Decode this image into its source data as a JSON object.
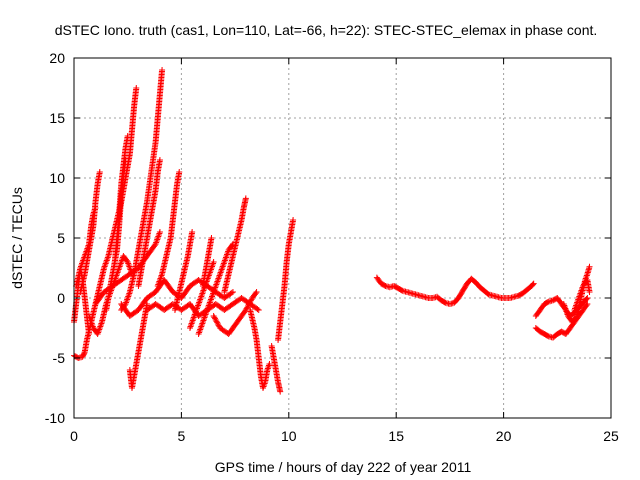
{
  "chart_data": {
    "type": "scatter",
    "title": "dSTEC Iono. truth (cas1, Lon=110, Lat=-66, h=22): STEC-STEC_elemax in phase cont.",
    "xlabel": "GPS time / hours of day 222 of year 2011",
    "ylabel": "dSTEC  / TECUs",
    "xlim": [
      0,
      25
    ],
    "ylim": [
      -10,
      20
    ],
    "xticks": [
      0,
      5,
      10,
      15,
      20,
      25
    ],
    "yticks": [
      -10,
      -5,
      0,
      5,
      10,
      15,
      20
    ],
    "grid": true,
    "marker": "plus",
    "marker_color": "#ff0000",
    "arcs": [
      [
        [
          0.0,
          -2.0
        ],
        [
          0.1,
          -0.5
        ],
        [
          0.2,
          1.0
        ],
        [
          0.3,
          2.5
        ],
        [
          0.4,
          1.5
        ],
        [
          0.5,
          0.0
        ],
        [
          0.6,
          -1.5
        ],
        [
          0.7,
          -3.0
        ]
      ],
      [
        [
          0.0,
          -4.8
        ],
        [
          0.2,
          -5.0
        ],
        [
          0.4,
          -4.9
        ],
        [
          0.5,
          -4.5
        ],
        [
          0.6,
          -3.5
        ],
        [
          0.8,
          -2.0
        ],
        [
          1.0,
          -0.5
        ],
        [
          1.2,
          1.0
        ],
        [
          1.4,
          2.5
        ],
        [
          1.6,
          3.5
        ],
        [
          1.8,
          5.0
        ],
        [
          2.0,
          6.5
        ],
        [
          2.2,
          8.0
        ],
        [
          2.4,
          10.0
        ],
        [
          2.6,
          12.0
        ],
        [
          2.7,
          14.0
        ],
        [
          2.8,
          16.0
        ],
        [
          2.9,
          17.5
        ]
      ],
      [
        [
          0.3,
          0.5
        ],
        [
          0.5,
          2.0
        ],
        [
          0.7,
          4.0
        ],
        [
          0.9,
          6.0
        ],
        [
          1.0,
          8.0
        ],
        [
          1.1,
          9.5
        ],
        [
          1.2,
          10.5
        ]
      ],
      [
        [
          0.1,
          1.0
        ],
        [
          0.3,
          2.5
        ],
        [
          0.5,
          3.5
        ],
        [
          0.7,
          4.5
        ],
        [
          0.8,
          6.0
        ],
        [
          0.9,
          7.0
        ],
        [
          1.0,
          7.5
        ]
      ],
      [
        [
          0.7,
          -1.5
        ],
        [
          0.9,
          -2.5
        ],
        [
          1.1,
          -3.0
        ],
        [
          1.3,
          -2.0
        ],
        [
          1.5,
          -0.5
        ],
        [
          1.7,
          0.5
        ],
        [
          1.9,
          1.5
        ],
        [
          2.1,
          2.5
        ],
        [
          2.3,
          3.5
        ],
        [
          2.5,
          3.0
        ],
        [
          2.7,
          2.0
        ]
      ],
      [
        [
          1.5,
          -1.0
        ],
        [
          1.7,
          1.0
        ],
        [
          1.9,
          3.0
        ],
        [
          2.0,
          5.0
        ],
        [
          2.1,
          7.0
        ],
        [
          2.2,
          9.5
        ],
        [
          2.3,
          11.0
        ],
        [
          2.4,
          12.5
        ],
        [
          2.5,
          13.5
        ]
      ],
      [
        [
          1.6,
          0.0
        ],
        [
          1.8,
          2.0
        ],
        [
          2.0,
          4.0
        ],
        [
          2.1,
          6.0
        ],
        [
          2.2,
          8.5
        ],
        [
          2.3,
          10.0
        ],
        [
          2.4,
          11.5
        ]
      ],
      [
        [
          1.0,
          -0.5
        ],
        [
          1.4,
          0.5
        ],
        [
          1.8,
          1.0
        ],
        [
          2.2,
          1.5
        ],
        [
          2.6,
          2.0
        ],
        [
          3.0,
          2.5
        ],
        [
          3.4,
          3.5
        ],
        [
          3.8,
          4.5
        ],
        [
          4.0,
          5.5
        ]
      ],
      [
        [
          2.2,
          -1.0
        ],
        [
          2.4,
          -0.5
        ],
        [
          2.6,
          0.5
        ],
        [
          2.8,
          2.0
        ],
        [
          3.0,
          4.0
        ],
        [
          3.2,
          6.0
        ],
        [
          3.4,
          8.0
        ],
        [
          3.6,
          10.5
        ],
        [
          3.8,
          13.0
        ],
        [
          3.9,
          15.0
        ],
        [
          4.0,
          17.0
        ],
        [
          4.1,
          19.0
        ]
      ],
      [
        [
          2.6,
          -6.0
        ],
        [
          2.7,
          -7.5
        ],
        [
          2.8,
          -6.5
        ],
        [
          2.9,
          -5.5
        ],
        [
          3.0,
          -4.5
        ],
        [
          3.1,
          -3.5
        ],
        [
          3.2,
          -2.5
        ],
        [
          3.3,
          -1.5
        ],
        [
          3.4,
          -0.5
        ]
      ],
      [
        [
          3.0,
          1.0
        ],
        [
          3.2,
          3.0
        ],
        [
          3.4,
          5.0
        ],
        [
          3.6,
          7.0
        ],
        [
          3.8,
          9.0
        ],
        [
          3.9,
          10.5
        ],
        [
          4.0,
          11.5
        ]
      ],
      [
        [
          2.2,
          -0.5
        ],
        [
          2.6,
          -1.5
        ],
        [
          3.0,
          -1.0
        ],
        [
          3.4,
          0.0
        ],
        [
          3.8,
          0.5
        ],
        [
          4.2,
          1.5
        ],
        [
          4.6,
          0.5
        ],
        [
          5.0,
          0.0
        ],
        [
          5.4,
          1.0
        ],
        [
          5.8,
          1.5
        ],
        [
          6.2,
          1.0
        ],
        [
          6.6,
          0.5
        ],
        [
          7.0,
          0.0
        ],
        [
          7.4,
          0.5
        ]
      ],
      [
        [
          3.4,
          -1.0
        ],
        [
          3.8,
          -0.5
        ],
        [
          4.2,
          -1.0
        ],
        [
          4.6,
          -0.5
        ],
        [
          5.0,
          -1.0
        ],
        [
          5.4,
          -0.5
        ],
        [
          5.8,
          -1.5
        ],
        [
          6.2,
          -1.0
        ],
        [
          6.6,
          -0.5
        ],
        [
          7.0,
          -1.0
        ],
        [
          7.4,
          -0.5
        ],
        [
          7.8,
          0.0
        ],
        [
          8.2,
          -0.5
        ],
        [
          8.6,
          -1.0
        ]
      ],
      [
        [
          3.9,
          1.0
        ],
        [
          4.1,
          2.0
        ],
        [
          4.3,
          3.5
        ],
        [
          4.5,
          5.0
        ],
        [
          4.6,
          6.5
        ],
        [
          4.7,
          8.0
        ],
        [
          4.8,
          9.5
        ],
        [
          4.9,
          10.5
        ]
      ],
      [
        [
          4.7,
          -1.0
        ],
        [
          4.9,
          0.5
        ],
        [
          5.1,
          2.0
        ],
        [
          5.3,
          3.5
        ],
        [
          5.4,
          4.5
        ],
        [
          5.5,
          5.5
        ]
      ],
      [
        [
          5.4,
          -2.5
        ],
        [
          5.6,
          -1.5
        ],
        [
          5.8,
          -0.5
        ],
        [
          6.0,
          0.5
        ],
        [
          6.2,
          1.5
        ],
        [
          6.4,
          2.5
        ],
        [
          6.5,
          3.0
        ]
      ],
      [
        [
          6.0,
          1.0
        ],
        [
          6.1,
          2.0
        ],
        [
          6.2,
          3.0
        ],
        [
          6.3,
          4.0
        ],
        [
          6.4,
          5.0
        ]
      ],
      [
        [
          5.8,
          -3.0
        ],
        [
          6.0,
          -2.0
        ],
        [
          6.2,
          -1.0
        ],
        [
          6.4,
          0.0
        ],
        [
          6.6,
          1.0
        ],
        [
          6.8,
          2.0
        ],
        [
          7.0,
          3.0
        ],
        [
          7.2,
          4.0
        ],
        [
          7.4,
          4.5
        ]
      ],
      [
        [
          7.0,
          0.5
        ],
        [
          7.2,
          2.0
        ],
        [
          7.4,
          3.5
        ],
        [
          7.6,
          5.0
        ],
        [
          7.8,
          6.5
        ],
        [
          7.9,
          7.5
        ],
        [
          8.0,
          8.3
        ]
      ],
      [
        [
          6.5,
          -1.5
        ],
        [
          6.8,
          -2.5
        ],
        [
          7.2,
          -3.0
        ],
        [
          7.6,
          -2.0
        ],
        [
          8.0,
          -1.0
        ],
        [
          8.3,
          0.0
        ],
        [
          8.5,
          0.5
        ]
      ],
      [
        [
          8.2,
          -1.0
        ],
        [
          8.4,
          -2.5
        ],
        [
          8.5,
          -3.5
        ],
        [
          8.6,
          -5.0
        ],
        [
          8.7,
          -6.5
        ],
        [
          8.8,
          -7.5
        ],
        [
          8.9,
          -7.0
        ],
        [
          9.0,
          -6.0
        ],
        [
          9.1,
          -5.5
        ]
      ],
      [
        [
          9.2,
          -4.0
        ],
        [
          9.3,
          -5.0
        ],
        [
          9.4,
          -6.0
        ],
        [
          9.5,
          -7.0
        ],
        [
          9.6,
          -7.8
        ]
      ],
      [
        [
          9.5,
          -3.5
        ],
        [
          9.6,
          -2.0
        ],
        [
          9.7,
          -0.5
        ],
        [
          9.8,
          1.0
        ],
        [
          9.9,
          3.0
        ],
        [
          10.0,
          4.5
        ],
        [
          10.1,
          5.5
        ],
        [
          10.2,
          6.5
        ]
      ],
      [
        [
          14.1,
          1.7
        ],
        [
          14.3,
          1.2
        ],
        [
          14.5,
          1.0
        ],
        [
          14.7,
          0.9
        ],
        [
          14.9,
          1.0
        ],
        [
          15.1,
          0.8
        ],
        [
          15.3,
          0.6
        ],
        [
          15.5,
          0.5
        ],
        [
          15.7,
          0.4
        ],
        [
          15.9,
          0.3
        ],
        [
          16.1,
          0.2
        ],
        [
          16.3,
          0.1
        ],
        [
          16.5,
          0.0
        ],
        [
          16.7,
          0.0
        ],
        [
          16.9,
          0.1
        ],
        [
          17.1,
          -0.2
        ],
        [
          17.3,
          -0.4
        ],
        [
          17.5,
          -0.5
        ],
        [
          17.7,
          -0.4
        ],
        [
          17.9,
          0.0
        ],
        [
          18.1,
          0.6
        ],
        [
          18.3,
          1.2
        ],
        [
          18.5,
          1.6
        ],
        [
          18.7,
          1.3
        ],
        [
          18.9,
          0.9
        ],
        [
          19.1,
          0.6
        ],
        [
          19.3,
          0.3
        ],
        [
          19.5,
          0.2
        ],
        [
          19.7,
          0.1
        ],
        [
          19.9,
          0.0
        ],
        [
          20.1,
          0.0
        ],
        [
          20.3,
          0.0
        ],
        [
          20.5,
          0.1
        ],
        [
          20.7,
          0.2
        ],
        [
          20.9,
          0.4
        ],
        [
          21.1,
          0.7
        ],
        [
          21.3,
          1.0
        ],
        [
          21.4,
          1.2
        ]
      ],
      [
        [
          21.5,
          -2.5
        ],
        [
          21.7,
          -2.8
        ],
        [
          21.9,
          -3.0
        ],
        [
          22.1,
          -3.2
        ],
        [
          22.3,
          -3.3
        ],
        [
          22.5,
          -3.0
        ],
        [
          22.7,
          -2.8
        ],
        [
          22.9,
          -3.0
        ],
        [
          23.1,
          -2.5
        ],
        [
          23.3,
          -2.0
        ],
        [
          23.5,
          -1.5
        ],
        [
          23.7,
          -1.0
        ],
        [
          23.9,
          -0.5
        ]
      ],
      [
        [
          21.5,
          -1.5
        ],
        [
          21.7,
          -1.0
        ],
        [
          21.9,
          -0.5
        ],
        [
          22.1,
          -0.3
        ],
        [
          22.3,
          -0.2
        ],
        [
          22.5,
          0.0
        ],
        [
          22.7,
          -0.5
        ],
        [
          22.9,
          -1.0
        ],
        [
          23.1,
          -1.5
        ],
        [
          23.3,
          -1.2
        ],
        [
          23.5,
          -0.8
        ],
        [
          23.7,
          -0.4
        ],
        [
          23.9,
          0.0
        ]
      ],
      [
        [
          22.8,
          -0.5
        ],
        [
          23.0,
          -1.5
        ],
        [
          23.2,
          -2.0
        ],
        [
          23.4,
          -1.5
        ],
        [
          23.6,
          0.0
        ],
        [
          23.8,
          1.5
        ],
        [
          23.9,
          2.0
        ],
        [
          24.0,
          2.6
        ]
      ],
      [
        [
          23.3,
          -1.0
        ],
        [
          23.5,
          0.0
        ],
        [
          23.7,
          1.0
        ],
        [
          23.9,
          1.5
        ],
        [
          24.0,
          0.5
        ]
      ]
    ]
  }
}
